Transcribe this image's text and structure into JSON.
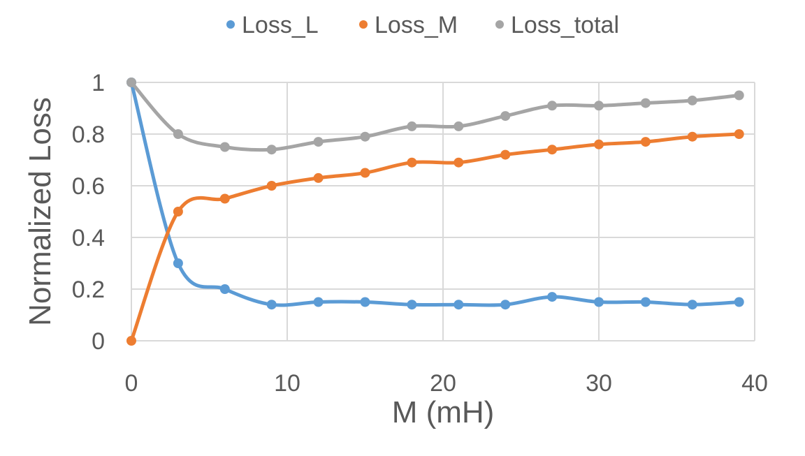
{
  "chart_data": {
    "type": "scatter",
    "title": "",
    "xlabel": "M (mH)",
    "ylabel": "Normalized Loss",
    "xlim": [
      0,
      40
    ],
    "ylim": [
      0,
      1
    ],
    "xticks": [
      "0",
      "10",
      "20",
      "30",
      "40"
    ],
    "yticks": [
      "0",
      "0.2",
      "0.4",
      "0.6",
      "0.8",
      "1"
    ],
    "grid": true,
    "legend_position": "top-center",
    "x": [
      0,
      3,
      6,
      9,
      12,
      15,
      18,
      21,
      24,
      27,
      30,
      33,
      36,
      39
    ],
    "series": [
      {
        "name": "Loss_L",
        "color": "#5B9BD5",
        "values": [
          1,
          0.3,
          0.2,
          0.14,
          0.15,
          0.15,
          0.14,
          0.14,
          0.14,
          0.17,
          0.15,
          0.15,
          0.14,
          0.15
        ]
      },
      {
        "name": "Loss_M",
        "color": "#ED7D31",
        "values": [
          0,
          0.5,
          0.55,
          0.6,
          0.63,
          0.65,
          0.69,
          0.69,
          0.72,
          0.74,
          0.76,
          0.77,
          0.79,
          0.8
        ]
      },
      {
        "name": "Loss_total",
        "color": "#A5A5A5",
        "values": [
          1,
          0.8,
          0.75,
          0.74,
          0.77,
          0.79,
          0.83,
          0.83,
          0.87,
          0.91,
          0.91,
          0.92,
          0.93,
          0.95
        ]
      }
    ]
  }
}
